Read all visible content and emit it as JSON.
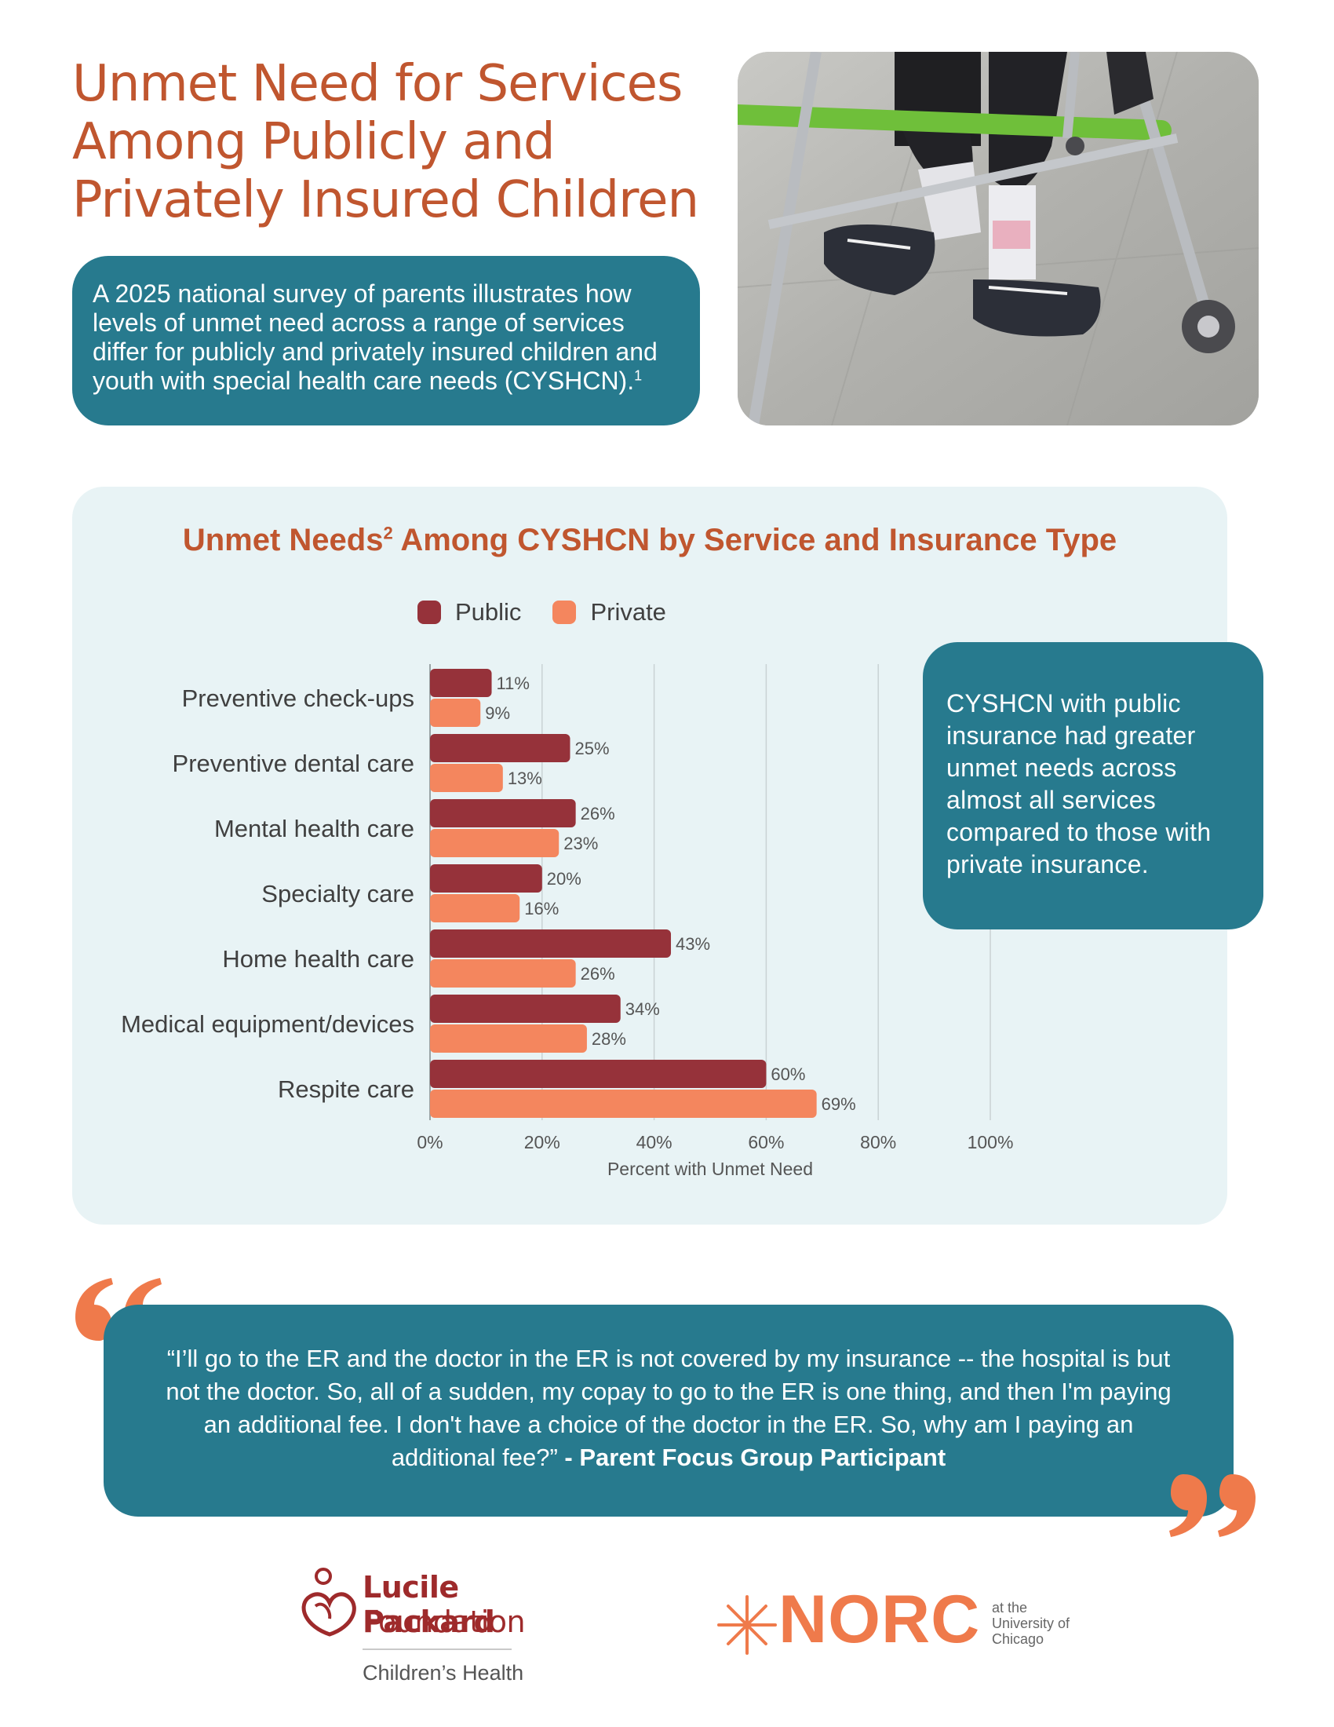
{
  "header": {
    "title_line1": "Unmet Need for Services",
    "title_line2": "Among Publicly and",
    "title_line3": "Privately Insured Children"
  },
  "intro": {
    "text": "A 2025 national survey of parents illustrates how levels of unmet need across a range of services differ for publicly and privately insured children and youth with special health care needs (CYSHCN).",
    "footnote": "1"
  },
  "photo": {
    "icon": "child-walker-photo"
  },
  "chart_data": {
    "type": "bar",
    "orientation": "horizontal",
    "title_part1": "Unmet Needs",
    "title_footnote": "2",
    "title_part2": " Among CYSHCN by Service and Insurance Type",
    "categories": [
      "Preventive check-ups",
      "Preventive dental care",
      "Mental health care",
      "Specialty care",
      "Home health care",
      "Medical equipment/devices",
      "Respite care"
    ],
    "series": [
      {
        "name": "Public",
        "color": "#96323a",
        "values": [
          11,
          25,
          26,
          20,
          43,
          34,
          60
        ]
      },
      {
        "name": "Private",
        "color": "#f4865e",
        "values": [
          9,
          13,
          23,
          16,
          26,
          28,
          69
        ]
      }
    ],
    "value_labels_public": [
      "11%",
      "25%",
      "26%",
      "20%",
      "43%",
      "34%",
      "60%"
    ],
    "value_labels_private": [
      "9%",
      "13%",
      "23%",
      "16%",
      "26%",
      "28%",
      "69%"
    ],
    "x_ticks": [
      "0%",
      "20%",
      "40%",
      "60%",
      "80%",
      "100%"
    ],
    "xlim": [
      0,
      100
    ],
    "xlabel": "Percent with Unmet Need",
    "grid": true,
    "legend_position": "top"
  },
  "callout": {
    "text": "CYSHCN with public insurance had greater unmet needs across almost all services compared to those with private insurance."
  },
  "quote": {
    "text": "“I’ll go to the ER and the doctor in the ER is not covered by my insurance -- the hospital is but not the doctor. So, all of a sudden, my copay to go to the ER is one thing, and then I'm paying an additional fee. I don't have a choice of the doctor in the ER. So, why am I paying an additional fee?” ",
    "attribution": "- Parent Focus Group Participant"
  },
  "logos": {
    "lp_line1": "Lucile Packard",
    "lp_line2": "Foundation",
    "lp_line3": "Children’s Health",
    "norc_name": "NORC",
    "norc_sub1": "at the",
    "norc_sub2": "University of",
    "norc_sub3": "Chicago"
  },
  "colors": {
    "accent_orange": "#c0562f",
    "teal": "#277a8e",
    "public": "#96323a",
    "private": "#f4865e",
    "panel_bg": "#e8f3f5"
  }
}
